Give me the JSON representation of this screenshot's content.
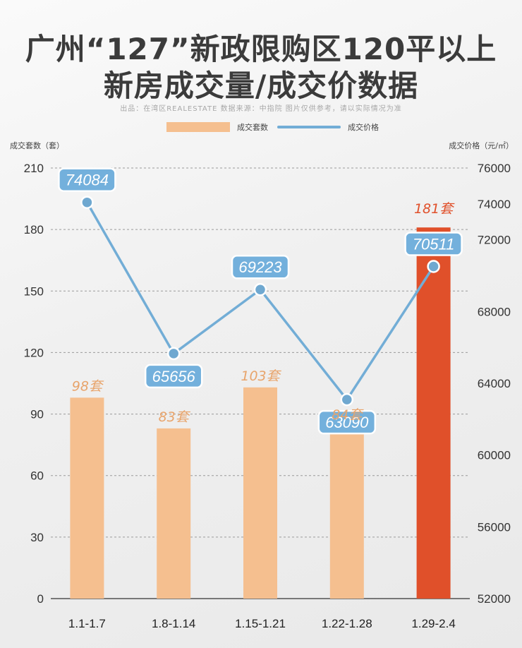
{
  "header": {
    "title_line1": "广州“127”新政限购区120平以上",
    "title_line2": "新房成交量/成交价数据",
    "source": "出品：在湾区REALESTATE 数据来源：中指院  图片仅供参考，请以实际情况为准"
  },
  "legend": {
    "bar_label": "成交套数",
    "line_label": "成交价格"
  },
  "chart_data": {
    "type": "bar",
    "categories": [
      "1.1-1.7",
      "1.8-1.14",
      "1.15-1.21",
      "1.22-1.28",
      "1.29-2.4"
    ],
    "series": [
      {
        "name": "成交套数",
        "type": "bar",
        "axis": "left",
        "values": [
          98,
          83,
          103,
          84,
          181
        ],
        "labels": [
          "98套",
          "83套",
          "103套",
          "84套",
          "181套"
        ]
      },
      {
        "name": "成交价格",
        "type": "line",
        "axis": "right",
        "values": [
          74084,
          65656,
          69223,
          63090,
          70511
        ],
        "labels": [
          "74084",
          "65656",
          "69223",
          "63090",
          "70511"
        ]
      }
    ],
    "ylabel": "成交套数（套）",
    "y2label": "成交价格（元/㎡）",
    "ylim": [
      0,
      210
    ],
    "yticks": [
      "0",
      "30",
      "60",
      "90",
      "120",
      "150",
      "180",
      "210"
    ],
    "y2lim": [
      52000,
      76000
    ],
    "y2ticks": [
      "52000",
      "56000",
      "60000",
      "64000",
      "68000",
      "72000",
      "74000",
      "76000"
    ],
    "grid": true,
    "legend_position": "top-center",
    "colors": {
      "bar": "#f5bf8f",
      "bar_highlight": "#e0502a",
      "bar_label": "#e8a46b",
      "bar_label_highlight": "#e0502a",
      "line": "#72add6",
      "point_fill": "#6fa8d0",
      "label_box": "#73b0dc"
    }
  }
}
